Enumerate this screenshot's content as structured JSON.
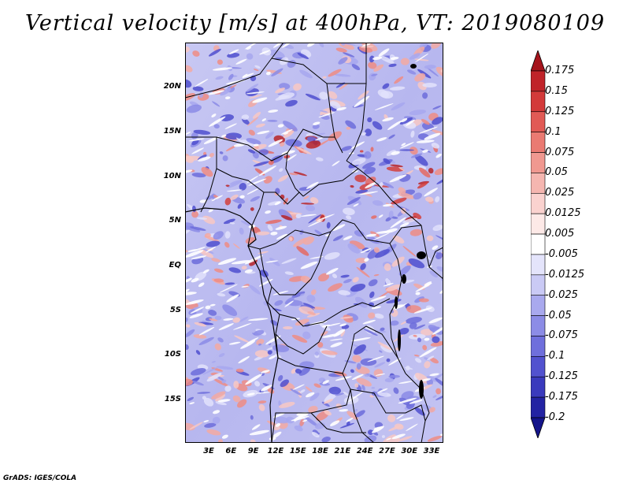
{
  "title": "Vertical velocity [m/s] at 400hPa, VT: 2019080109",
  "footer": "GrADS: IGES/COLA",
  "lat_labels": [
    "20N",
    "15N",
    "10N",
    "5N",
    "EQ",
    "5S",
    "10S",
    "15S"
  ],
  "lon_labels": [
    "3E",
    "6E",
    "9E",
    "12E",
    "15E",
    "18E",
    "21E",
    "24E",
    "27E",
    "30E",
    "33E"
  ],
  "colorbar": {
    "levels": [
      "0.175",
      "0.15",
      "0.125",
      "0.1",
      "0.075",
      "0.05",
      "0.025",
      "0.0125",
      "0.005",
      "-0.005",
      "-0.0125",
      "-0.025",
      "-0.05",
      "-0.075",
      "-0.1",
      "-0.125",
      "-0.175",
      "-0.2"
    ],
    "colors": [
      "#a5141c",
      "#c0242a",
      "#d33a3a",
      "#e15a55",
      "#ea7a72",
      "#f09890",
      "#f5b6b0",
      "#fad2cf",
      "#fde9e7",
      "#ffffff",
      "#e4e4fb",
      "#cacaf5",
      "#a9a9ee",
      "#8c8ce6",
      "#6f6fdc",
      "#5252cf",
      "#3a3abd",
      "#2323a3",
      "#14148a"
    ]
  },
  "colors": {
    "background": "#ffffff",
    "map_base": "#c9c9f4",
    "border": "#000000"
  }
}
